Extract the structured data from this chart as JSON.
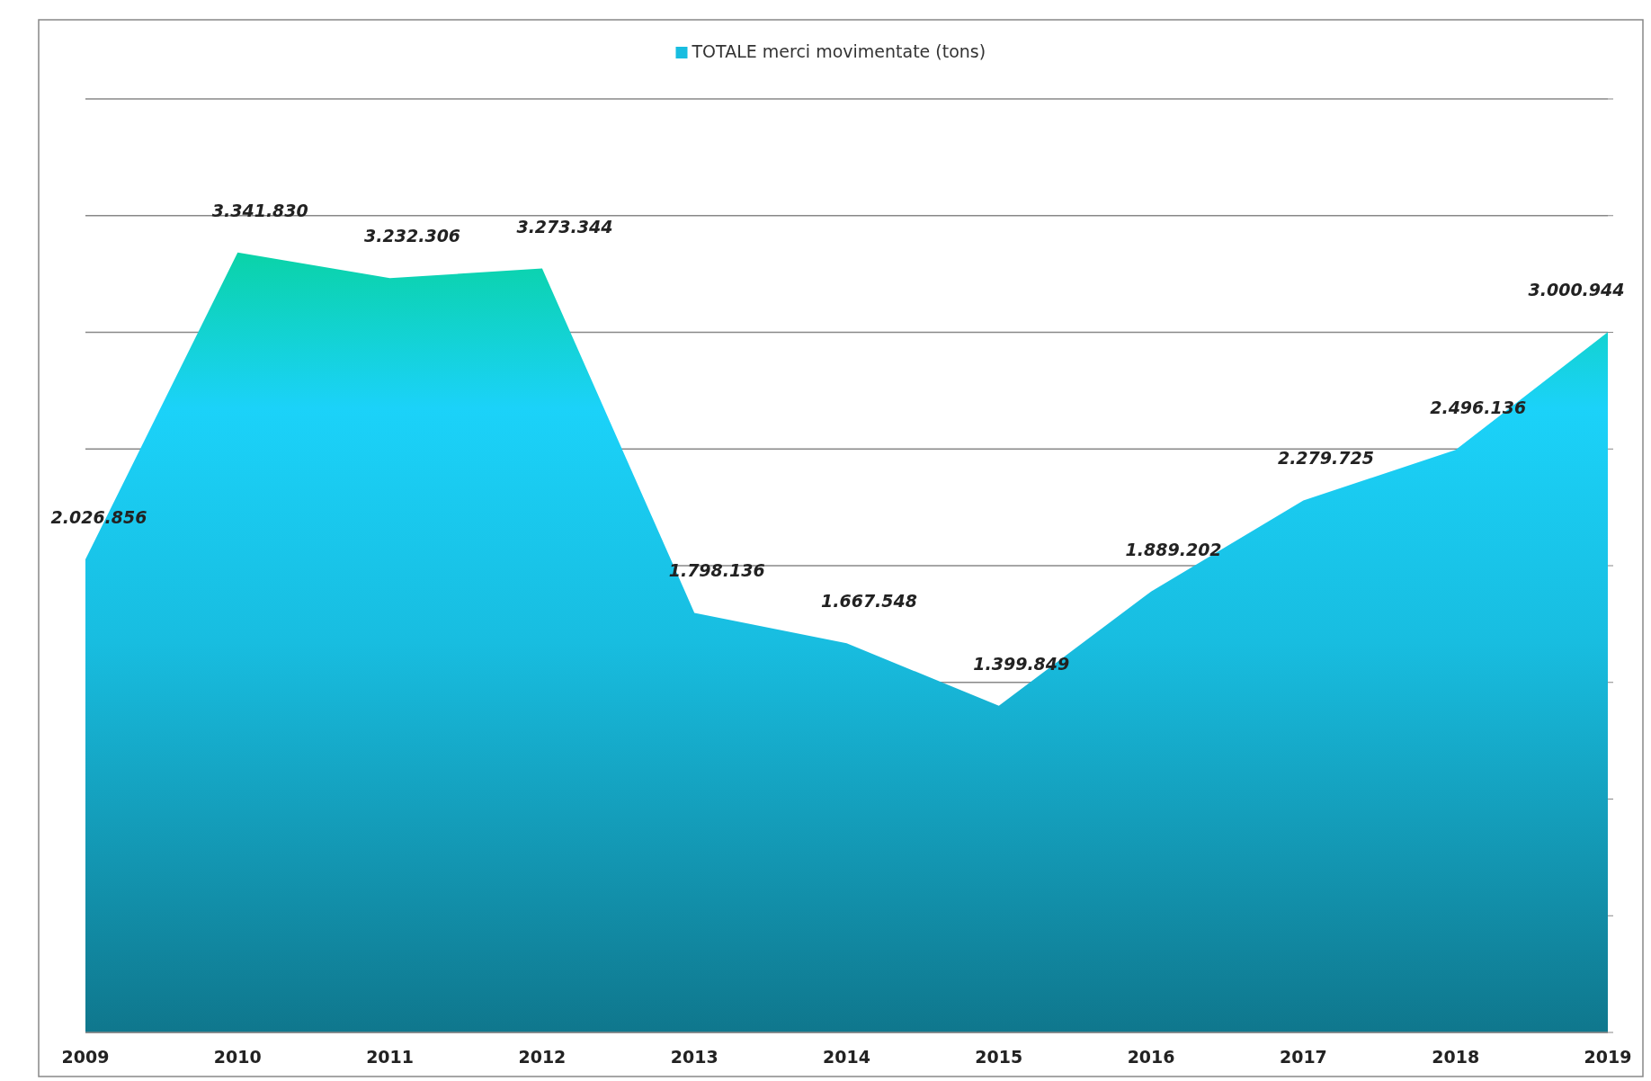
{
  "chart_data": {
    "type": "area",
    "categories": [
      "2009",
      "2010",
      "2011",
      "2012",
      "2013",
      "2014",
      "2015",
      "2016",
      "2017",
      "2018",
      "2019"
    ],
    "series": [
      {
        "name": "TOTALE merci  movimentate  (tons)",
        "color": "#18bde0",
        "values": [
          2026856,
          3341830,
          3232306,
          3273344,
          1798136,
          1667548,
          1399849,
          1889202,
          2279725,
          2496136,
          3000944
        ],
        "value_labels": [
          "2.026.856",
          "3.341.830",
          "3.232.306",
          "3.273.344",
          "1.798.136",
          "1.667.548",
          "1.399.849",
          "1.889.202",
          "2.279.725",
          "2.496.136",
          "3.000.944"
        ]
      }
    ],
    "ylim": [
      0,
      4000000
    ],
    "yticks": [
      {
        "value": 0,
        "label": null
      },
      {
        "value": 500000,
        "label": null
      },
      {
        "value": 1000000,
        "label": null
      },
      {
        "value": 1500000,
        "label": null
      },
      {
        "value": 2000000,
        "label": null
      },
      {
        "value": 2500000,
        "label": null
      },
      {
        "value": 3000000,
        "label": null
      },
      {
        "value": 3500000,
        "label": null
      },
      {
        "value": 4000000,
        "label": null
      }
    ],
    "grid": "y",
    "legend": "top",
    "tick_labels": "x"
  }
}
